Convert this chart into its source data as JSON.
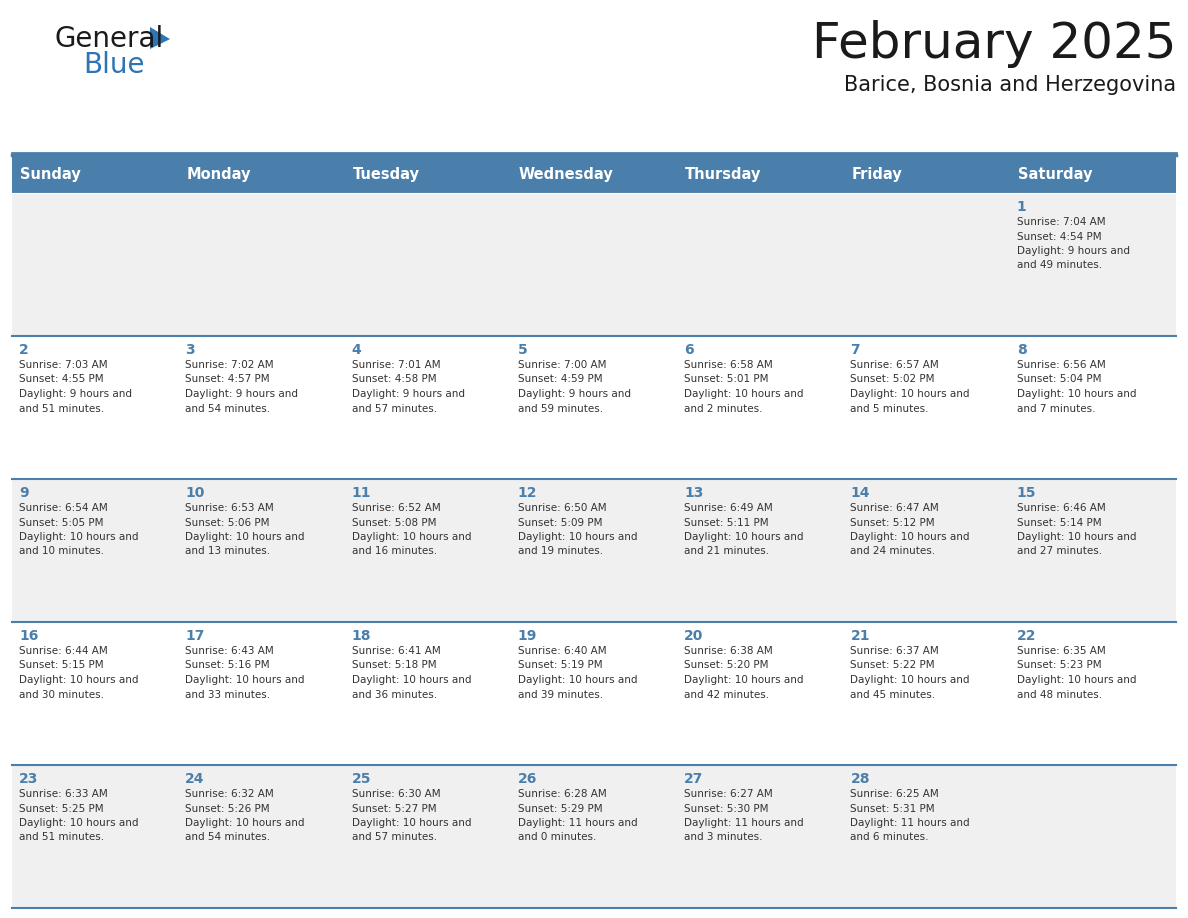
{
  "title": "February 2025",
  "subtitle": "Barice, Bosnia and Herzegovina",
  "days_of_week": [
    "Sunday",
    "Monday",
    "Tuesday",
    "Wednesday",
    "Thursday",
    "Friday",
    "Saturday"
  ],
  "header_bg": "#4a7eab",
  "header_text": "#ffffff",
  "cell_bg_odd": "#f0f0f0",
  "cell_bg_even": "#ffffff",
  "border_color": "#4a7eab",
  "day_number_color": "#4a7eab",
  "cell_text_color": "#333333",
  "title_color": "#1a1a1a",
  "subtitle_color": "#1a1a1a",
  "logo_general_color": "#1a1a1a",
  "logo_blue_color": "#2e75b6",
  "calendar_data": [
    [
      null,
      null,
      null,
      null,
      null,
      null,
      {
        "day": 1,
        "sunrise": "7:04 AM",
        "sunset": "4:54 PM",
        "daylight": "9 hours and 49 minutes."
      }
    ],
    [
      {
        "day": 2,
        "sunrise": "7:03 AM",
        "sunset": "4:55 PM",
        "daylight": "9 hours and 51 minutes."
      },
      {
        "day": 3,
        "sunrise": "7:02 AM",
        "sunset": "4:57 PM",
        "daylight": "9 hours and 54 minutes."
      },
      {
        "day": 4,
        "sunrise": "7:01 AM",
        "sunset": "4:58 PM",
        "daylight": "9 hours and 57 minutes."
      },
      {
        "day": 5,
        "sunrise": "7:00 AM",
        "sunset": "4:59 PM",
        "daylight": "9 hours and 59 minutes."
      },
      {
        "day": 6,
        "sunrise": "6:58 AM",
        "sunset": "5:01 PM",
        "daylight": "10 hours and 2 minutes."
      },
      {
        "day": 7,
        "sunrise": "6:57 AM",
        "sunset": "5:02 PM",
        "daylight": "10 hours and 5 minutes."
      },
      {
        "day": 8,
        "sunrise": "6:56 AM",
        "sunset": "5:04 PM",
        "daylight": "10 hours and 7 minutes."
      }
    ],
    [
      {
        "day": 9,
        "sunrise": "6:54 AM",
        "sunset": "5:05 PM",
        "daylight": "10 hours and 10 minutes."
      },
      {
        "day": 10,
        "sunrise": "6:53 AM",
        "sunset": "5:06 PM",
        "daylight": "10 hours and 13 minutes."
      },
      {
        "day": 11,
        "sunrise": "6:52 AM",
        "sunset": "5:08 PM",
        "daylight": "10 hours and 16 minutes."
      },
      {
        "day": 12,
        "sunrise": "6:50 AM",
        "sunset": "5:09 PM",
        "daylight": "10 hours and 19 minutes."
      },
      {
        "day": 13,
        "sunrise": "6:49 AM",
        "sunset": "5:11 PM",
        "daylight": "10 hours and 21 minutes."
      },
      {
        "day": 14,
        "sunrise": "6:47 AM",
        "sunset": "5:12 PM",
        "daylight": "10 hours and 24 minutes."
      },
      {
        "day": 15,
        "sunrise": "6:46 AM",
        "sunset": "5:14 PM",
        "daylight": "10 hours and 27 minutes."
      }
    ],
    [
      {
        "day": 16,
        "sunrise": "6:44 AM",
        "sunset": "5:15 PM",
        "daylight": "10 hours and 30 minutes."
      },
      {
        "day": 17,
        "sunrise": "6:43 AM",
        "sunset": "5:16 PM",
        "daylight": "10 hours and 33 minutes."
      },
      {
        "day": 18,
        "sunrise": "6:41 AM",
        "sunset": "5:18 PM",
        "daylight": "10 hours and 36 minutes."
      },
      {
        "day": 19,
        "sunrise": "6:40 AM",
        "sunset": "5:19 PM",
        "daylight": "10 hours and 39 minutes."
      },
      {
        "day": 20,
        "sunrise": "6:38 AM",
        "sunset": "5:20 PM",
        "daylight": "10 hours and 42 minutes."
      },
      {
        "day": 21,
        "sunrise": "6:37 AM",
        "sunset": "5:22 PM",
        "daylight": "10 hours and 45 minutes."
      },
      {
        "day": 22,
        "sunrise": "6:35 AM",
        "sunset": "5:23 PM",
        "daylight": "10 hours and 48 minutes."
      }
    ],
    [
      {
        "day": 23,
        "sunrise": "6:33 AM",
        "sunset": "5:25 PM",
        "daylight": "10 hours and 51 minutes."
      },
      {
        "day": 24,
        "sunrise": "6:32 AM",
        "sunset": "5:26 PM",
        "daylight": "10 hours and 54 minutes."
      },
      {
        "day": 25,
        "sunrise": "6:30 AM",
        "sunset": "5:27 PM",
        "daylight": "10 hours and 57 minutes."
      },
      {
        "day": 26,
        "sunrise": "6:28 AM",
        "sunset": "5:29 PM",
        "daylight": "11 hours and 0 minutes."
      },
      {
        "day": 27,
        "sunrise": "6:27 AM",
        "sunset": "5:30 PM",
        "daylight": "11 hours and 3 minutes."
      },
      {
        "day": 28,
        "sunrise": "6:25 AM",
        "sunset": "5:31 PM",
        "daylight": "11 hours and 6 minutes."
      },
      null
    ]
  ]
}
